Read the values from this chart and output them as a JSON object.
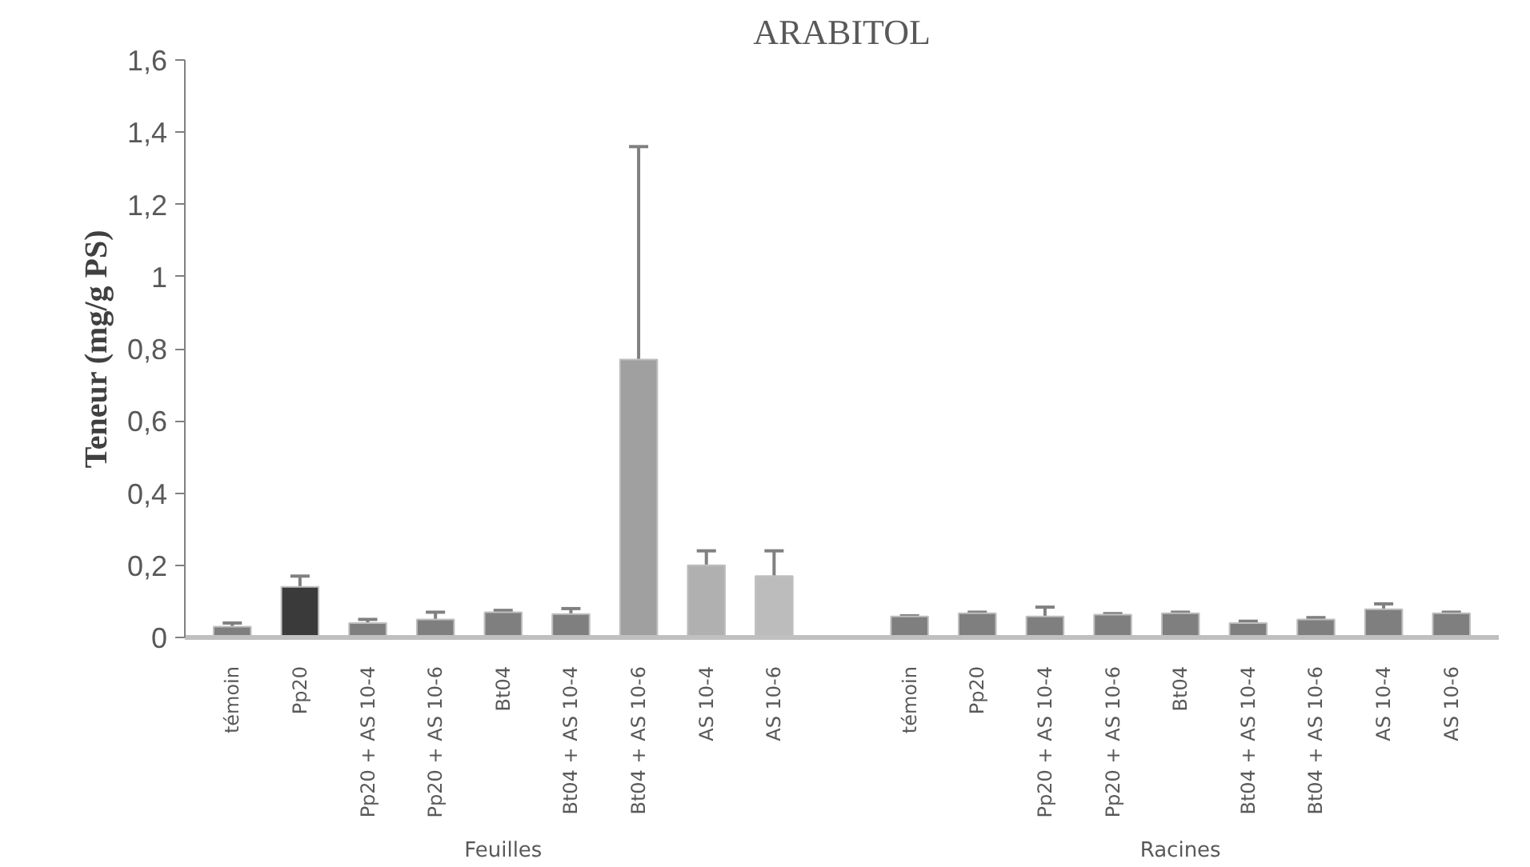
{
  "chart_data": {
    "type": "bar",
    "title": "ARABITOL",
    "ylabel": "Teneur (mg/g PS)",
    "categories": [
      "témoin",
      "Pp20",
      "Pp20 + AS 10-4",
      "Pp20 + AS 10-6",
      "Bt04",
      "Bt04 + AS 10-4",
      "Bt04 + AS 10-6",
      "AS 10-4",
      "AS 10-6",
      "témoin",
      "Pp20",
      "Pp20 + AS 10-4",
      "Pp20 + AS 10-6",
      "Bt04",
      "Bt04 + AS 10-4",
      "Bt04 + AS 10-6",
      "AS 10-4",
      "AS 10-6"
    ],
    "values": [
      0.03,
      0.14,
      0.04,
      0.05,
      0.07,
      0.065,
      0.77,
      0.2,
      0.17,
      0.058,
      0.067,
      0.058,
      0.063,
      0.067,
      0.04,
      0.05,
      0.078,
      0.067
    ],
    "errors": [
      [
        0.03,
        0.04
      ],
      [
        0.14,
        0.17
      ],
      [
        0.04,
        0.05
      ],
      [
        0.05,
        0.07
      ],
      [
        0.07,
        0.075
      ],
      [
        0.065,
        0.08
      ],
      [
        0.77,
        1.36
      ],
      [
        0.2,
        0.24
      ],
      [
        0.17,
        0.24
      ],
      [
        0.058,
        0.06
      ],
      [
        0.067,
        0.07
      ],
      [
        0.058,
        0.084
      ],
      [
        0.063,
        0.066
      ],
      [
        0.067,
        0.07
      ],
      [
        0.04,
        0.045
      ],
      [
        0.05,
        0.055
      ],
      [
        0.078,
        0.093
      ],
      [
        0.067,
        0.07
      ]
    ],
    "colors": [
      "#7f7f7f",
      "#3a3a3a",
      "#7f7f7f",
      "#7f7f7f",
      "#7f7f7f",
      "#7f7f7f",
      "#a0a0a0",
      "#b0b0b0",
      "#bcbcbc",
      "#7f7f7f",
      "#7f7f7f",
      "#7f7f7f",
      "#7f7f7f",
      "#7f7f7f",
      "#7f7f7f",
      "#7f7f7f",
      "#7f7f7f",
      "#7f7f7f"
    ],
    "annotations": [
      "Feuilles",
      "Racines"
    ],
    "ylim": [
      0,
      1.6
    ],
    "yticks": [
      0,
      {
        "value": 0.2,
        "label": "0,2"
      },
      {
        "value": 0.4,
        "label": "0,4"
      },
      {
        "value": 0.6,
        "label": "0,6"
      },
      {
        "value": 0.8,
        "label": "0,8"
      },
      1,
      {
        "value": 1.2,
        "label": "1,2"
      },
      {
        "value": 1.4,
        "label": "1,4"
      },
      {
        "value": 1.6,
        "label": "1,6"
      }
    ],
    "grid": false
  }
}
